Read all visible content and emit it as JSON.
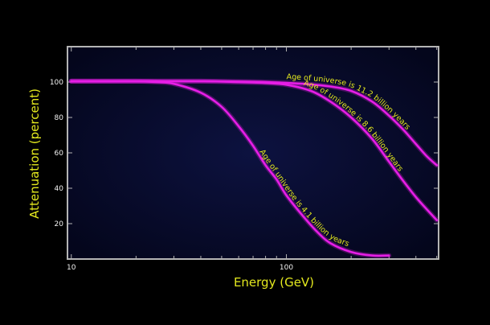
{
  "chart_data": {
    "type": "line",
    "xlabel": "Energy (GeV)",
    "ylabel": "Attenuation (percent)",
    "x_scale": "log",
    "xlim": [
      9.6,
      510
    ],
    "ylim": [
      0,
      120
    ],
    "x_ticks": [
      10,
      100
    ],
    "y_ticks": [
      20,
      40,
      60,
      80,
      100
    ],
    "grid": false,
    "colors": {
      "background": "#000000",
      "plot_area": "#070a2a",
      "frame": "#b4b4b4",
      "curves": "#e61ee6",
      "text_labels": "#e3e81e",
      "tick_text": "#f2f2f2"
    },
    "series": [
      {
        "name": "Age of universe is 11.2 billion years",
        "x": [
          10,
          20,
          40,
          80,
          120,
          160,
          200,
          250,
          300,
          350,
          400,
          450,
          500
        ],
        "y": [
          100.5,
          100.5,
          100.5,
          100,
          99,
          97.5,
          95,
          89,
          81,
          73,
          65,
          58,
          53
        ]
      },
      {
        "name": "Age of universe is 8.6 billion years",
        "x": [
          10,
          20,
          40,
          60,
          80,
          100,
          130,
          160,
          200,
          250,
          300,
          350,
          400,
          450,
          500
        ],
        "y": [
          100.5,
          100.5,
          100.5,
          100,
          99.5,
          98.5,
          95,
          89,
          80,
          68,
          55,
          44,
          35,
          28,
          22
        ]
      },
      {
        "name": "Age of universe is 4.1 billion years",
        "x": [
          10,
          15,
          20,
          25,
          30,
          40,
          50,
          60,
          70,
          80,
          90,
          100,
          120,
          140,
          160,
          200,
          250,
          300
        ],
        "y": [
          100.5,
          100.5,
          100.5,
          100,
          99,
          94,
          86,
          75,
          64,
          53,
          45,
          36,
          24,
          15,
          9,
          4,
          2,
          2
        ]
      }
    ]
  }
}
